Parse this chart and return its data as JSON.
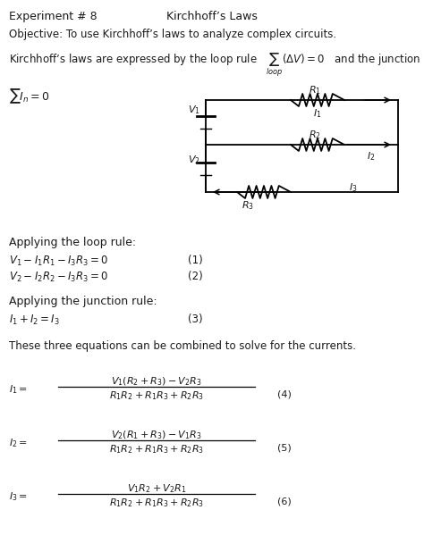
{
  "bg_color": "#ffffff",
  "text_color": "#1a1a1a",
  "fig_width": 4.74,
  "fig_height": 5.99,
  "dpi": 100,
  "header_left": "Experiment # 8",
  "header_center": "Kirchhoff’s Laws",
  "objective": "Objective: To use Kirchhoff’s laws to analyze complex circuits.",
  "kirchhoff_line": "Kirchhoff’s laws are expressed by the loop rule",
  "loop_math": "$\\sum_{loop}(\\Delta V) = 0$",
  "junction_after": " and the junction rule,",
  "junction_rule": "$\\sum I_{n} = 0$",
  "applying_loop": "Applying the loop rule:",
  "eq1_text": "$V_1 - I_1R_1 - I_3R_3 = 0$",
  "eq1_num": "(1)",
  "eq2_text": "$V_2 - I_2R_2 - I_3R_3 = 0$",
  "eq2_num": "(2)",
  "applying_junction": "Applying the junction rule:",
  "eq3_text": "$I_1 + I_2 = I_3$",
  "eq3_num": "(3)",
  "combine_text": "These three equations can be combined to solve for the currents.",
  "eq4_frac_num": "$V_1(R_2 + R_3) - V_2R_3$",
  "eq4_frac_den": "$R_1R_2 + R_1R_3 + R_2R_3$",
  "eq4_num": "(4)",
  "eq5_frac_num": "$V_2(R_1 + R_3) - V_1R_3$",
  "eq5_frac_den": "$R_1R_2 + R_1R_3 + R_2R_3$",
  "eq5_num": "(5)",
  "eq6_frac_num": "$V_1R_2 + V_2R_1$",
  "eq6_frac_den": "$R_1R_2 + R_1R_3 + R_2R_3$",
  "eq6_num": "(6)"
}
